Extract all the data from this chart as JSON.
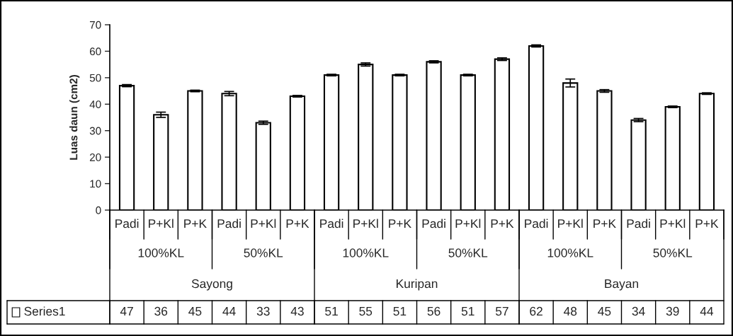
{
  "chart_data": {
    "type": "bar",
    "ylabel": "Luas daun (cm2)",
    "categories": [
      "Padi",
      "P+Kl",
      "P+K",
      "Padi",
      "P+Kl",
      "P+K",
      "Padi",
      "P+Kl",
      "P+K",
      "Padi",
      "P+Kl",
      "P+K",
      "Padi",
      "P+Kl",
      "P+K",
      "Padi",
      "P+Kl",
      "P+K"
    ],
    "series": [
      {
        "name": "Series1",
        "color": "#ffffff",
        "values": [
          47,
          36,
          45,
          44,
          33,
          43,
          51,
          55,
          51,
          56,
          51,
          57,
          62,
          48,
          45,
          34,
          39,
          44
        ],
        "errors": [
          0.4,
          1.0,
          0.3,
          0.8,
          0.6,
          0.3,
          0.3,
          0.6,
          0.3,
          0.4,
          0.3,
          0.5,
          0.4,
          1.5,
          0.5,
          0.6,
          0.3,
          0.3
        ]
      }
    ],
    "annotations": [
      "100%KL",
      "50%KL",
      "100%KL",
      "50%KL",
      "100%KL",
      "50%KL",
      "Sayong",
      "Kuripan",
      "Bayan"
    ],
    "ylim": [
      0,
      70
    ],
    "yticks": [
      0,
      10,
      20,
      30,
      40,
      50,
      60,
      70
    ],
    "data_labels": true,
    "legend": "bottom",
    "grid": false
  }
}
